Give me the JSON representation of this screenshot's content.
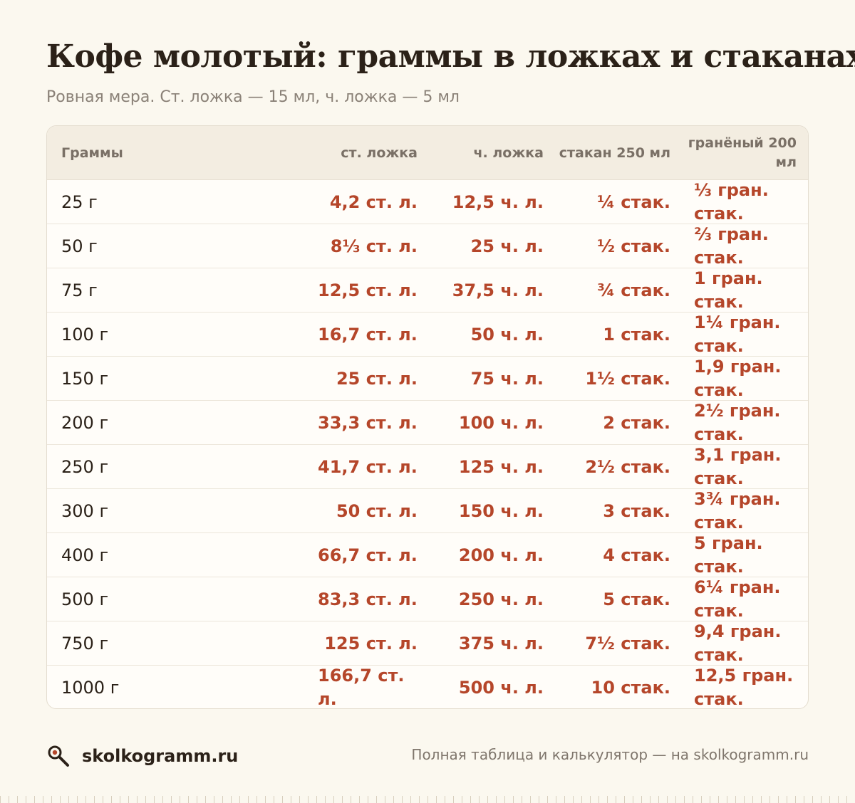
{
  "title": "Кофе молотый: граммы в ложках и стаканах",
  "subtitle": "Ровная мера. Ст. ложка — 15 мл, ч. ложка — 5 мл",
  "table": {
    "headers": [
      "Граммы",
      "ст. ложка",
      "ч. ложка",
      "стакан 250 мл",
      "гранёный 200 мл"
    ],
    "rows": [
      [
        "25 г",
        "4,2 ст. л.",
        "12,5 ч. л.",
        "¼ стак.",
        "⅓ гран. стак."
      ],
      [
        "50 г",
        "8⅓ ст. л.",
        "25 ч. л.",
        "½ стак.",
        "⅔ гран. стак."
      ],
      [
        "75 г",
        "12,5 ст. л.",
        "37,5 ч. л.",
        "¾ стак.",
        "1 гран. стак."
      ],
      [
        "100 г",
        "16,7 ст. л.",
        "50 ч. л.",
        "1 стак.",
        "1¼ гран. стак."
      ],
      [
        "150 г",
        "25 ст. л.",
        "75 ч. л.",
        "1½ стак.",
        "1,9 гран. стак."
      ],
      [
        "200 г",
        "33,3 ст. л.",
        "100 ч. л.",
        "2 стак.",
        "2½ гран. стак."
      ],
      [
        "250 г",
        "41,7 ст. л.",
        "125 ч. л.",
        "2½ стак.",
        "3,1 гран. стак."
      ],
      [
        "300 г",
        "50 ст. л.",
        "150 ч. л.",
        "3 стак.",
        "3¾ гран. стак."
      ],
      [
        "400 г",
        "66,7 ст. л.",
        "200 ч. л.",
        "4 стак.",
        "5 гран. стак."
      ],
      [
        "500 г",
        "83,3 ст. л.",
        "250 ч. л.",
        "5 стак.",
        "6¼ гран. стак."
      ],
      [
        "750 г",
        "125 ст. л.",
        "375 ч. л.",
        "7½ стак.",
        "9,4 гран. стак."
      ],
      [
        "1000 г",
        "166,7 ст. л.",
        "500 ч. л.",
        "10 стак.",
        "12,5 гран. стак."
      ]
    ]
  },
  "footer": {
    "logo_icon": "magnifier-icon",
    "brand": "skolkogramm.ru",
    "note": "Полная таблица и калькулятор — на skolkogramm.ru"
  },
  "colors": {
    "background": "#fbf8ef",
    "accent": "#b5462a",
    "header_bg": "#f3ede1",
    "text": "#2b2118"
  }
}
